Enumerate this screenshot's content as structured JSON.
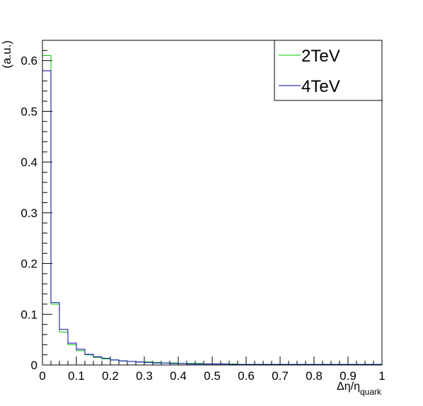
{
  "chart_data": {
    "type": "histogram",
    "ylabel": "(a.u.)",
    "xlabel_main": "Δη/η",
    "xlabel_sub": "quark",
    "xlim": [
      0,
      1
    ],
    "ylim": [
      0,
      0.64
    ],
    "x_ticks": [
      "0",
      "0.1",
      "0.2",
      "0.3",
      "0.4",
      "0.5",
      "0.6",
      "0.7",
      "0.8",
      "0.9",
      "1"
    ],
    "y_ticks": [
      "0",
      "0.1",
      "0.2",
      "0.3",
      "0.4",
      "0.5",
      "0.6"
    ],
    "legend_position": "top-right",
    "bin_width": 0.025,
    "series": [
      {
        "name": "2TeV",
        "color": "#00cc00",
        "values": [
          0.61,
          0.12,
          0.065,
          0.04,
          0.028,
          0.02,
          0.015,
          0.012,
          0.01,
          0.008,
          0.007,
          0.006,
          0.006,
          0.005,
          0.004,
          0.004,
          0.003,
          0.003,
          0.003,
          0.002,
          0.002,
          0.002,
          0.002,
          0.001,
          0.001,
          0.001,
          0.001,
          0.001,
          0.001,
          0.001,
          0.001,
          0.001,
          0.001,
          0.001,
          0.001,
          0.001,
          0.001,
          0.001,
          0.001,
          0.001
        ]
      },
      {
        "name": "4TeV",
        "color": "#0000aa",
        "values": [
          0.58,
          0.123,
          0.07,
          0.043,
          0.031,
          0.021,
          0.016,
          0.013,
          0.01,
          0.008,
          0.007,
          0.006,
          0.005,
          0.004,
          0.004,
          0.003,
          0.003,
          0.002,
          0.002,
          0.002,
          0.002,
          0.002,
          0.001,
          0.001,
          0.001,
          0.001,
          0.001,
          0.001,
          0.001,
          0.001,
          0.001,
          0.001,
          0.001,
          0.001,
          0.001,
          0.001,
          0.001,
          0.001,
          0.001,
          0.001
        ]
      }
    ]
  }
}
